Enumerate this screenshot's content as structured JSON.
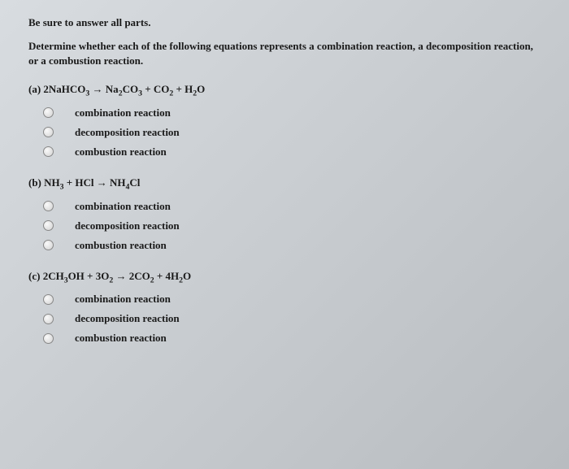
{
  "instruction": "Be sure to answer all parts.",
  "prompt": "Determine whether each of the following equations represents a combination reaction, a decomposition reaction, or a combustion reaction.",
  "questions": [
    {
      "label": "(a)",
      "equation_html": "2NaHCO<sub>3</sub> → Na<sub>2</sub>CO<sub>3</sub> + CO<sub>2</sub> + H<sub>2</sub>O"
    },
    {
      "label": "(b)",
      "equation_html": "NH<sub>3</sub> + HCl → NH<sub>4</sub>Cl"
    },
    {
      "label": "(c)",
      "equation_html": "2CH<sub>3</sub>OH + 3O<sub>2</sub> → 2CO<sub>2</sub> + 4H<sub>2</sub>O"
    }
  ],
  "options": [
    "combination reaction",
    "decomposition reaction",
    "combustion reaction"
  ],
  "colors": {
    "background_start": "#d8dce0",
    "background_end": "#b8bcc0",
    "text": "#1a1a1a",
    "radio_border": "#888888"
  },
  "fonts": {
    "body_family": "Georgia, Times New Roman, serif",
    "body_size": 13,
    "weight": "bold"
  }
}
